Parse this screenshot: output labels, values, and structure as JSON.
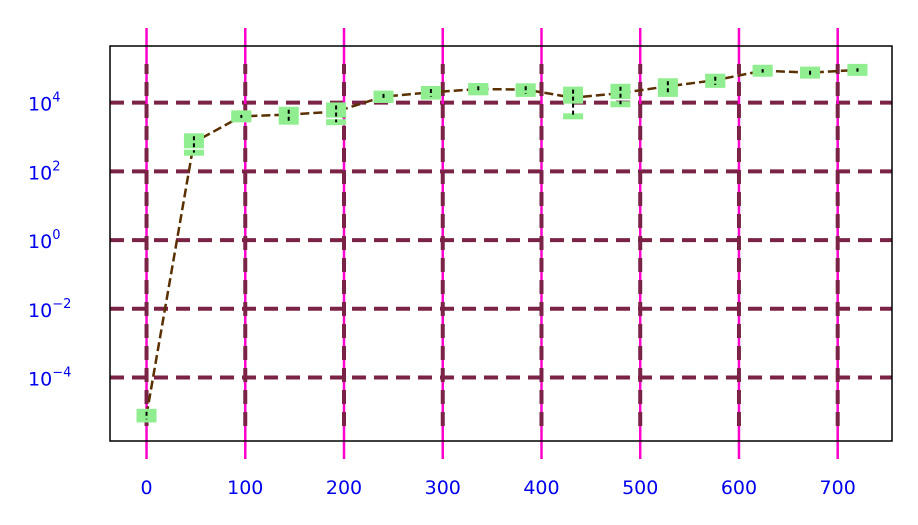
{
  "chart_data": {
    "type": "line",
    "title": "",
    "xlabel": "",
    "ylabel": "",
    "y_scale": "log",
    "xlim": [
      -37,
      755
    ],
    "ylim_exp": [
      -5.85,
      5.65
    ],
    "x_ticks": [
      0,
      100,
      200,
      300,
      400,
      500,
      600,
      700
    ],
    "x_tick_labels": [
      "0",
      "100",
      "200",
      "300",
      "400",
      "500",
      "600",
      "700"
    ],
    "y_tick_exponents": [
      -4,
      -2,
      0,
      2,
      4
    ],
    "y_tick_labels": [
      {
        "base": "10",
        "exp": "−4"
      },
      {
        "base": "10",
        "exp": "−2"
      },
      {
        "base": "10",
        "exp": "0"
      },
      {
        "base": "10",
        "exp": "2"
      },
      {
        "base": "10",
        "exp": "4"
      }
    ],
    "grid": true,
    "colors": {
      "line": "#5a3000",
      "marker": "#90ee90",
      "errorbar": "#000000",
      "h_grid": "#7b2346",
      "v_grid": "#ff00cc",
      "tick_label": "#0000ee"
    },
    "series": [
      {
        "x": [
          0,
          48,
          96,
          144,
          192,
          240,
          288,
          336,
          384,
          432,
          480,
          528,
          576,
          624,
          672,
          720
        ],
        "y": [
          8e-06,
          700,
          4000,
          4500,
          5500,
          15000,
          20000,
          25000,
          24000,
          14000,
          19000,
          30000,
          45000,
          85000,
          75000,
          90000
        ],
        "y_err_low": [
          2e-06,
          350,
          400,
          1700,
          2800,
          3000,
          5000,
          5000,
          6000,
          10000,
          10000,
          12000,
          12000,
          10000,
          10000,
          10000
        ],
        "y_err_high": [
          2e-06,
          350,
          400,
          1700,
          2800,
          3000,
          5000,
          5000,
          6000,
          10000,
          10000,
          12000,
          12000,
          10000,
          10000,
          10000
        ]
      }
    ]
  }
}
